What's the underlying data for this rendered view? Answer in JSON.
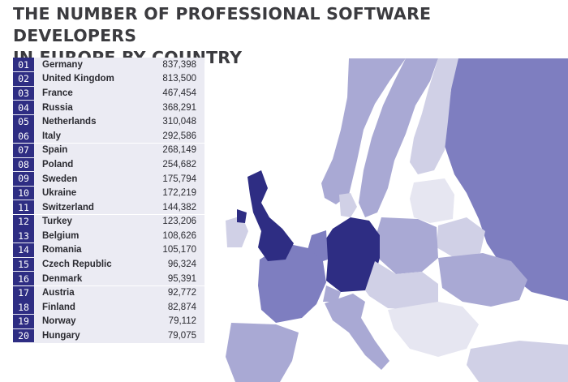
{
  "title": {
    "line1": "THE NUMBER OF PROFESSIONAL SOFTWARE DEVELOPERS",
    "line2": "IN EUROPE BY COUNTRY"
  },
  "colors": {
    "rank_badge": "#2e2d83",
    "row_background": "#ebebf3",
    "map_top_country": "#2e2d83",
    "map_high": "#7e7ec0",
    "map_mid": "#a9a9d4",
    "map_low": "#d0d0e6",
    "map_lowest": "#e6e6f1"
  },
  "ranking": [
    {
      "rank": "01",
      "country": "Germany",
      "count": "837,398"
    },
    {
      "rank": "02",
      "country": "United Kingdom",
      "count": "813,500"
    },
    {
      "rank": "03",
      "country": "France",
      "count": "467,454"
    },
    {
      "rank": "04",
      "country": "Russia",
      "count": "368,291"
    },
    {
      "rank": "05",
      "country": "Netherlands",
      "count": "310,048"
    },
    {
      "rank": "06",
      "country": "Italy",
      "count": "292,586"
    },
    {
      "rank": "07",
      "country": "Spain",
      "count": "268,149"
    },
    {
      "rank": "08",
      "country": "Poland",
      "count": "254,682"
    },
    {
      "rank": "09",
      "country": "Sweden",
      "count": "175,794"
    },
    {
      "rank": "10",
      "country": "Ukraine",
      "count": "172,219"
    },
    {
      "rank": "11",
      "country": "Switzerland",
      "count": "144,382"
    },
    {
      "rank": "12",
      "country": "Turkey",
      "count": "123,206"
    },
    {
      "rank": "13",
      "country": "Belgium",
      "count": "108,626"
    },
    {
      "rank": "14",
      "country": "Romania",
      "count": "105,170"
    },
    {
      "rank": "15",
      "country": "Czech Republic",
      "count": "96,324"
    },
    {
      "rank": "16",
      "country": "Denmark",
      "count": "95,391"
    },
    {
      "rank": "17",
      "country": "Austria",
      "count": "92,772"
    },
    {
      "rank": "18",
      "country": "Finland",
      "count": "82,874"
    },
    {
      "rank": "19",
      "country": "Norway",
      "count": "79,112"
    },
    {
      "rank": "20",
      "country": "Hungary",
      "count": "79,075"
    }
  ]
}
